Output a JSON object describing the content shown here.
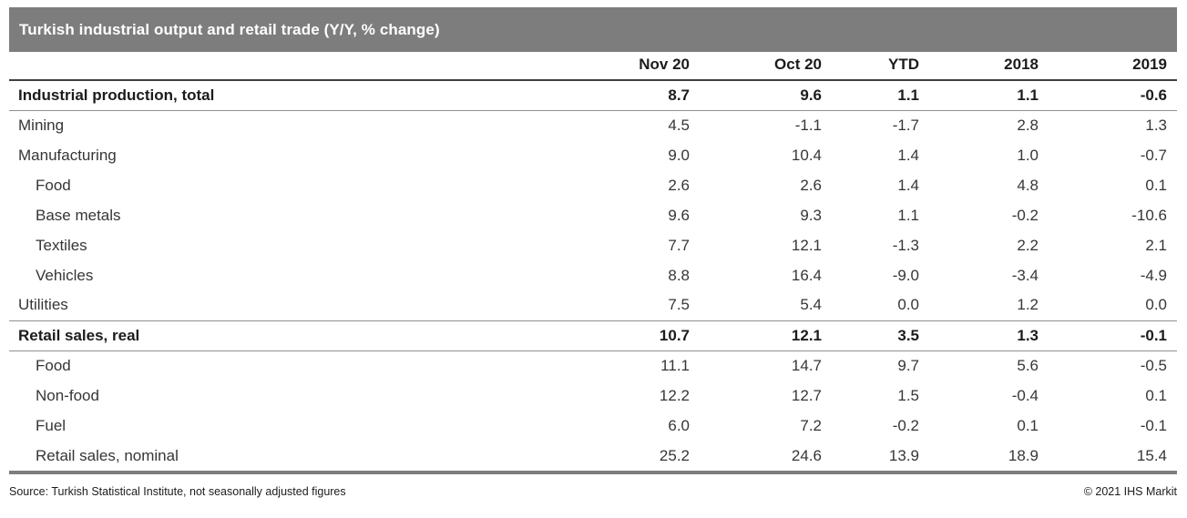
{
  "title_bar": {
    "title": "Turkish industrial output and retail trade (Y/Y, % change)"
  },
  "table": {
    "columns": [
      "Nov 20",
      "Oct 20",
      "YTD",
      "2018",
      "2019"
    ],
    "rows": [
      {
        "label": "Industrial production, total",
        "style": "section",
        "values": [
          "8.7",
          "9.6",
          "1.1",
          "1.1",
          "-0.6"
        ]
      },
      {
        "label": "Mining",
        "style": "plain",
        "values": [
          "4.5",
          "-1.1",
          "-1.7",
          "2.8",
          "1.3"
        ]
      },
      {
        "label": "Manufacturing",
        "style": "plain",
        "values": [
          "9.0",
          "10.4",
          "1.4",
          "1.0",
          "-0.7"
        ]
      },
      {
        "label": "Food",
        "style": "indent",
        "values": [
          "2.6",
          "2.6",
          "1.4",
          "4.8",
          "0.1"
        ]
      },
      {
        "label": "Base metals",
        "style": "indent",
        "values": [
          "9.6",
          "9.3",
          "1.1",
          "-0.2",
          "-10.6"
        ]
      },
      {
        "label": "Textiles",
        "style": "indent",
        "values": [
          "7.7",
          "12.1",
          "-1.3",
          "2.2",
          "2.1"
        ]
      },
      {
        "label": "Vehicles",
        "style": "indent",
        "values": [
          "8.8",
          "16.4",
          "-9.0",
          "-3.4",
          "-4.9"
        ]
      },
      {
        "label": "Utilities",
        "style": "plain",
        "values": [
          "7.5",
          "5.4",
          "0.0",
          "1.2",
          "0.0"
        ]
      },
      {
        "label": "Retail sales, real",
        "style": "section",
        "values": [
          "10.7",
          "12.1",
          "3.5",
          "1.3",
          "-0.1"
        ]
      },
      {
        "label": "Food",
        "style": "indent",
        "values": [
          "11.1",
          "14.7",
          "9.7",
          "5.6",
          "-0.5"
        ]
      },
      {
        "label": "Non-food",
        "style": "indent",
        "values": [
          "12.2",
          "12.7",
          "1.5",
          "-0.4",
          "0.1"
        ]
      },
      {
        "label": "Fuel",
        "style": "indent",
        "values": [
          "6.0",
          "7.2",
          "-0.2",
          "0.1",
          "-0.1"
        ]
      },
      {
        "label": "Retail sales, nominal",
        "style": "indent",
        "values": [
          "25.2",
          "24.6",
          "13.9",
          "18.9",
          "15.4"
        ]
      }
    ]
  },
  "footer": {
    "source": "Source: Turkish Statistical Institute, not seasonally adjusted figures",
    "copyright": "© 2021 IHS Markit"
  },
  "colors": {
    "title_bar_bg": "#7d7d7d",
    "title_text": "#ffffff",
    "header_rule": "#3f3f3f",
    "section_rule": "#8f8f8f",
    "bottom_rule": "#7d7d7d",
    "text_dark": "#1c1c1c",
    "text_body": "#363636"
  },
  "chart_data": {
    "type": "table",
    "title": "Turkish industrial output and retail trade (Y/Y, % change)",
    "columns": [
      "Nov 20",
      "Oct 20",
      "YTD",
      "2018",
      "2019"
    ],
    "series": [
      {
        "name": "Industrial production, total",
        "values": [
          8.7,
          9.6,
          1.1,
          1.1,
          -0.6
        ]
      },
      {
        "name": "Mining",
        "values": [
          4.5,
          -1.1,
          -1.7,
          2.8,
          1.3
        ]
      },
      {
        "name": "Manufacturing",
        "values": [
          9.0,
          10.4,
          1.4,
          1.0,
          -0.7
        ]
      },
      {
        "name": "Manufacturing: Food",
        "values": [
          2.6,
          2.6,
          1.4,
          4.8,
          0.1
        ]
      },
      {
        "name": "Manufacturing: Base metals",
        "values": [
          9.6,
          9.3,
          1.1,
          -0.2,
          -10.6
        ]
      },
      {
        "name": "Manufacturing: Textiles",
        "values": [
          7.7,
          12.1,
          -1.3,
          2.2,
          2.1
        ]
      },
      {
        "name": "Manufacturing: Vehicles",
        "values": [
          8.8,
          16.4,
          -9.0,
          -3.4,
          -4.9
        ]
      },
      {
        "name": "Utilities",
        "values": [
          7.5,
          5.4,
          0.0,
          1.2,
          0.0
        ]
      },
      {
        "name": "Retail sales, real",
        "values": [
          10.7,
          12.1,
          3.5,
          1.3,
          -0.1
        ]
      },
      {
        "name": "Retail sales, real: Food",
        "values": [
          11.1,
          14.7,
          9.7,
          5.6,
          -0.5
        ]
      },
      {
        "name": "Retail sales, real: Non-food",
        "values": [
          12.2,
          12.7,
          1.5,
          -0.4,
          0.1
        ]
      },
      {
        "name": "Retail sales, real: Fuel",
        "values": [
          6.0,
          7.2,
          -0.2,
          0.1,
          -0.1
        ]
      },
      {
        "name": "Retail sales, nominal",
        "values": [
          25.2,
          24.6,
          13.9,
          18.9,
          15.4
        ]
      }
    ],
    "source": "Source: Turkish Statistical Institute, not seasonally adjusted figures",
    "copyright": "© 2021 IHS Markit"
  }
}
